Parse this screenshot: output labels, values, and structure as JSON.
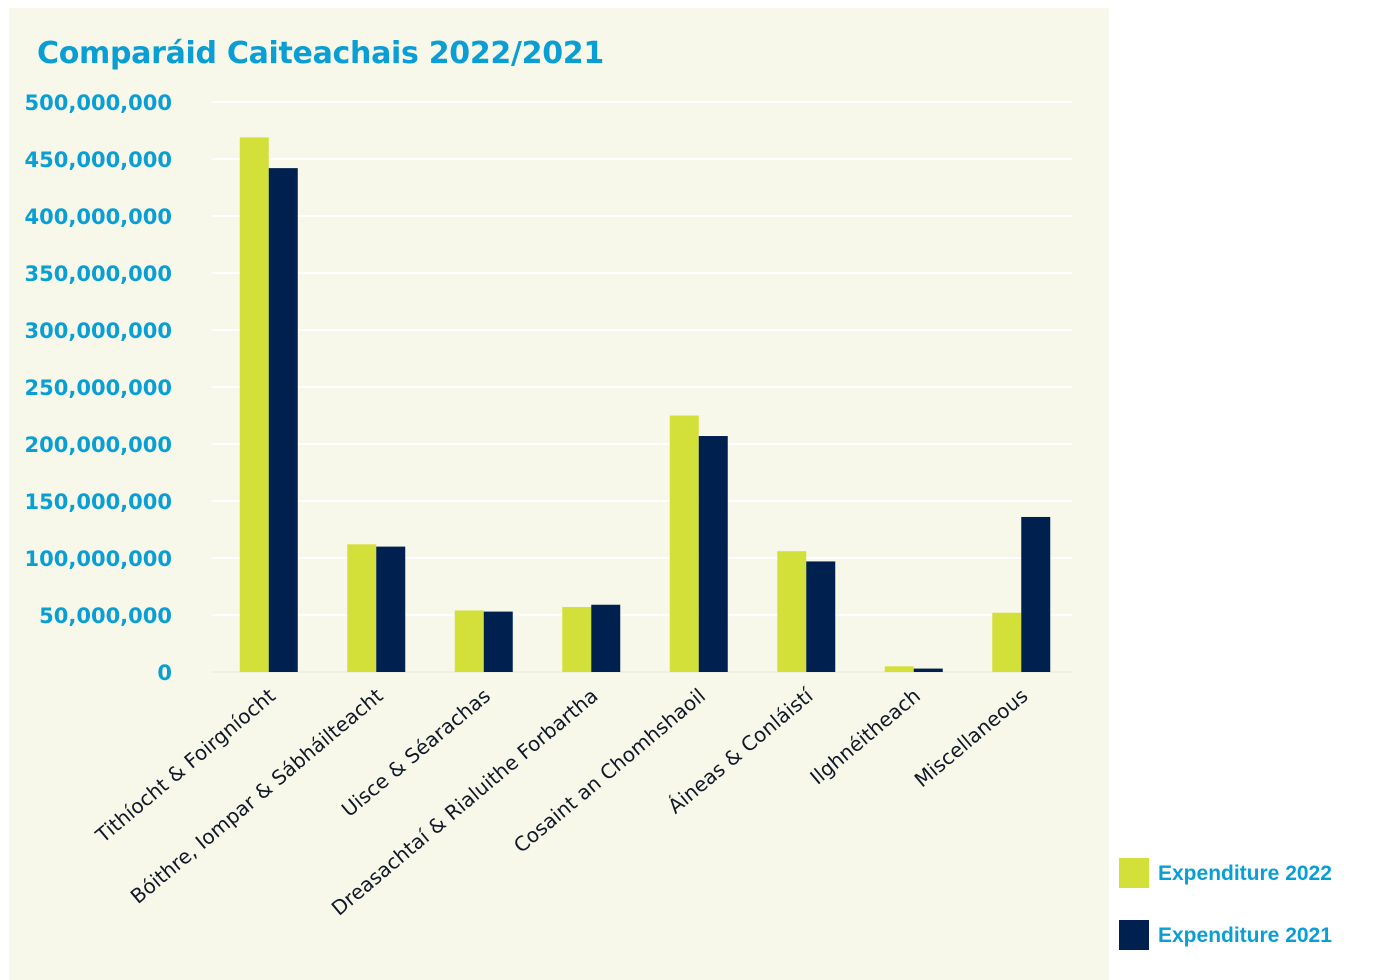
{
  "chart_data": {
    "type": "bar",
    "title": "Comparáid Caiteachais 2022/2021",
    "xlabel": "",
    "ylabel": "",
    "ylim": [
      0,
      500000000
    ],
    "yticks": [
      "0",
      "50,000,000",
      "100,000,000",
      "150,000,000",
      "200,000,000",
      "250,000,000",
      "300,000,000",
      "350,000,000",
      "400,000,000",
      "450,000,000",
      "500,000,000"
    ],
    "categories": [
      "Tithíocht & Foirgníocht",
      "Bóithre, Iompar & Sábháilteacht",
      "Uisce & Séarachas",
      "Dreasachtaí & Rialuithe Forbartha",
      "Cosaint an Chomhshaoil",
      "Áineas & Conláistí",
      "Ilghnéitheach",
      "Miscellaneous"
    ],
    "series": [
      {
        "name": "Expenditure 2022",
        "color": "#d4e03a",
        "values": [
          469000000,
          112000000,
          54000000,
          57000000,
          225000000,
          106000000,
          5000000,
          52000000
        ]
      },
      {
        "name": "Expenditure 2021",
        "color": "#00214f",
        "values": [
          442000000,
          110000000,
          53000000,
          59000000,
          207000000,
          97000000,
          3000000,
          136000000
        ]
      }
    ],
    "grid": true,
    "legend_position": "bottom-right"
  }
}
